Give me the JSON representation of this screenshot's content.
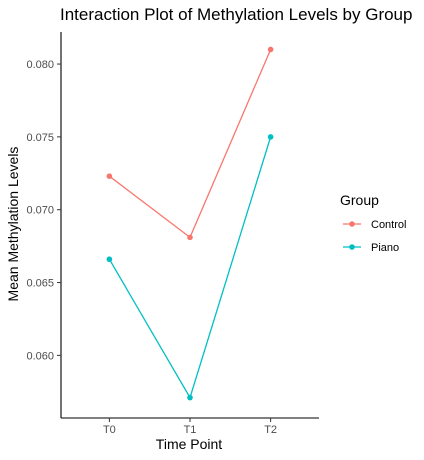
{
  "chart_data": {
    "type": "line",
    "title": "Interaction Plot of Methylation Levels by Group",
    "xlabel": "Time Point",
    "ylabel": "Mean Methylation Levels",
    "categories": [
      "T0",
      "T1",
      "T2"
    ],
    "y_ticks": [
      "0.060",
      "0.065",
      "0.070",
      "0.075",
      "0.080"
    ],
    "ylim": [
      0.0557,
      0.0822
    ],
    "grid": false,
    "legend": {
      "title": "Group",
      "position": "right"
    },
    "series": [
      {
        "name": "Control",
        "color": "#F8766D",
        "values": [
          0.0723,
          0.0681,
          0.081
        ]
      },
      {
        "name": "Piano",
        "color": "#00BFC4",
        "values": [
          0.0666,
          0.0571,
          0.075
        ]
      }
    ]
  }
}
